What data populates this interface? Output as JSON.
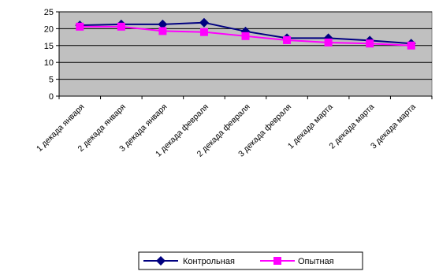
{
  "chart_data": {
    "type": "line",
    "categories": [
      "1 декада января",
      "2 декада января",
      "3 декада января",
      "1 декада февраля",
      "2 декада февраля",
      "3 декада февраля",
      "1 декада марта",
      "2 декада марта",
      "3 декада марта"
    ],
    "series": [
      {
        "name": "Контрольная",
        "color": "#000080",
        "marker": "diamond",
        "values": [
          21,
          21.3,
          21.3,
          21.8,
          19.2,
          17.2,
          17.2,
          16.5,
          15.6
        ]
      },
      {
        "name": "Опытная",
        "color": "#ff00ff",
        "marker": "square",
        "values": [
          20.6,
          20.6,
          19.3,
          19,
          17.8,
          16.6,
          15.9,
          15.6,
          15
        ]
      }
    ],
    "ylim": [
      0,
      25
    ],
    "yticks": [
      0,
      5,
      10,
      15,
      20,
      25
    ],
    "grid": "horizontal",
    "plot_background": "#c0c0c0",
    "legend": "bottom",
    "title": "",
    "xlabel": "",
    "ylabel": ""
  }
}
